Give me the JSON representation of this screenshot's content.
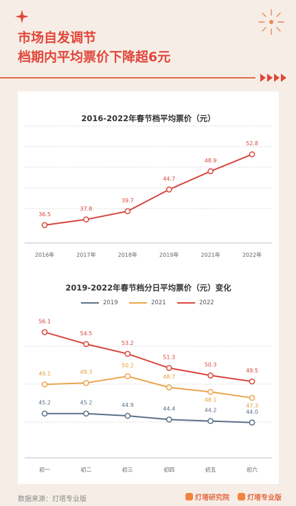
{
  "header": {
    "title_line1": "市场自发调节",
    "title_line2": "档期内平均票价下降超6元"
  },
  "footer": {
    "source": "数据来源：灯塔专业版",
    "brand1": "灯塔研究院",
    "brand2": "灯塔专业版"
  },
  "colors": {
    "accent": "#e2463b",
    "series_2019": "#5a6f87",
    "series_2021": "#eba54b",
    "series_2022": "#d9453c"
  },
  "chart_data": [
    {
      "type": "line",
      "title": "2016-2022年春节档平均票价（元）",
      "categories": [
        "2016年",
        "2017年",
        "2018年",
        "2019年",
        "2021年",
        "2022年"
      ],
      "series": [
        {
          "values": [
            36.5,
            37.8,
            39.7,
            44.7,
            48.9,
            52.8
          ]
        }
      ],
      "ylim": [
        30,
        56
      ],
      "grid": true
    },
    {
      "type": "line",
      "title": "2019-2022年春节档分日平均票价（元）变化",
      "categories": [
        "初一",
        "初二",
        "初三",
        "初四",
        "初五",
        "初六"
      ],
      "series": [
        {
          "name": "2019",
          "values": [
            45.2,
            45.2,
            44.9,
            44.4,
            44.2,
            44.0
          ]
        },
        {
          "name": "2021",
          "values": [
            49.1,
            49.3,
            50.2,
            48.7,
            48.1,
            47.3
          ]
        },
        {
          "name": "2022",
          "values": [
            56.1,
            54.5,
            53.2,
            51.3,
            50.3,
            49.5
          ]
        }
      ],
      "ylim": [
        39,
        59
      ],
      "legend": "top-center",
      "grid": true
    }
  ]
}
